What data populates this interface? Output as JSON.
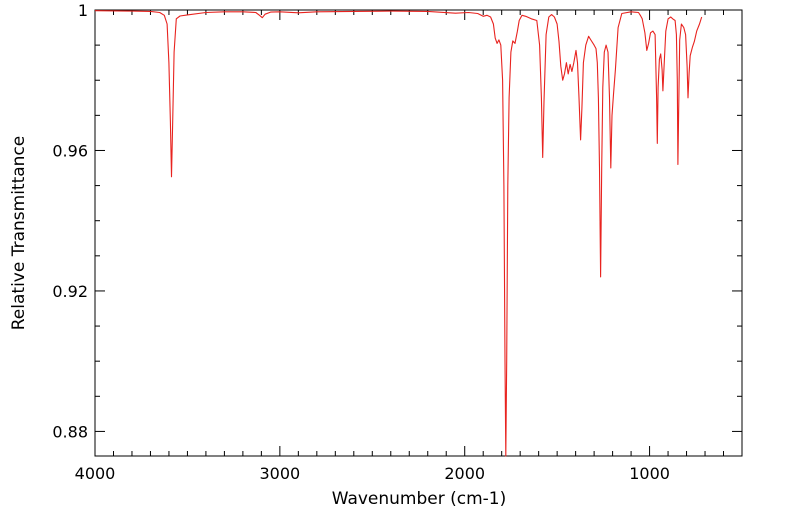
{
  "chart_data": {
    "type": "line",
    "xlabel": "Wavenumber (cm-1)",
    "ylabel": "Relative Transmittance",
    "xlim": [
      4000,
      500
    ],
    "ylim": [
      0.873,
      1.0
    ],
    "x_reversed": true,
    "x_ticks": [
      4000,
      3000,
      2000,
      1000
    ],
    "x_tick_labels": [
      "4000",
      "3000",
      "2000",
      "1000"
    ],
    "y_ticks": [
      1.0,
      0.96,
      0.92,
      0.88
    ],
    "y_tick_labels": [
      "1",
      "0.96",
      "0.92",
      "0.88"
    ],
    "grid": false,
    "series": [
      {
        "color": "#e8231f",
        "points": [
          [
            4000,
            0.9998
          ],
          [
            3800,
            0.9997
          ],
          [
            3700,
            0.9996
          ],
          [
            3650,
            0.9993
          ],
          [
            3625,
            0.9985
          ],
          [
            3610,
            0.996
          ],
          [
            3600,
            0.985
          ],
          [
            3592,
            0.968
          ],
          [
            3586,
            0.9525
          ],
          [
            3580,
            0.967
          ],
          [
            3572,
            0.988
          ],
          [
            3560,
            0.9975
          ],
          [
            3540,
            0.9983
          ],
          [
            3500,
            0.9986
          ],
          [
            3400,
            0.9993
          ],
          [
            3300,
            0.9995
          ],
          [
            3200,
            0.9995
          ],
          [
            3130,
            0.9993
          ],
          [
            3110,
            0.9985
          ],
          [
            3095,
            0.9978
          ],
          [
            3080,
            0.9988
          ],
          [
            3050,
            0.9994
          ],
          [
            3000,
            0.9995
          ],
          [
            2900,
            0.9992
          ],
          [
            2800,
            0.9995
          ],
          [
            2600,
            0.9996
          ],
          [
            2400,
            0.9997
          ],
          [
            2200,
            0.9996
          ],
          [
            2050,
            0.9991
          ],
          [
            1980,
            0.9993
          ],
          [
            1930,
            0.999
          ],
          [
            1900,
            0.9982
          ],
          [
            1880,
            0.9985
          ],
          [
            1860,
            0.998
          ],
          [
            1845,
            0.996
          ],
          [
            1835,
            0.992
          ],
          [
            1825,
            0.9905
          ],
          [
            1815,
            0.9915
          ],
          [
            1805,
            0.99
          ],
          [
            1795,
            0.98
          ],
          [
            1788,
            0.95
          ],
          [
            1782,
            0.9
          ],
          [
            1778,
            0.873
          ],
          [
            1773,
            0.9
          ],
          [
            1767,
            0.95
          ],
          [
            1760,
            0.975
          ],
          [
            1750,
            0.988
          ],
          [
            1740,
            0.9912
          ],
          [
            1728,
            0.9905
          ],
          [
            1715,
            0.994
          ],
          [
            1705,
            0.997
          ],
          [
            1690,
            0.9985
          ],
          [
            1670,
            0.9982
          ],
          [
            1640,
            0.9975
          ],
          [
            1610,
            0.997
          ],
          [
            1595,
            0.99
          ],
          [
            1585,
            0.975
          ],
          [
            1578,
            0.958
          ],
          [
            1571,
            0.974
          ],
          [
            1560,
            0.993
          ],
          [
            1545,
            0.998
          ],
          [
            1530,
            0.9987
          ],
          [
            1515,
            0.998
          ],
          [
            1500,
            0.996
          ],
          [
            1490,
            0.991
          ],
          [
            1480,
            0.984
          ],
          [
            1470,
            0.98
          ],
          [
            1460,
            0.9818
          ],
          [
            1450,
            0.985
          ],
          [
            1440,
            0.9818
          ],
          [
            1430,
            0.9845
          ],
          [
            1420,
            0.9825
          ],
          [
            1410,
            0.985
          ],
          [
            1398,
            0.9885
          ],
          [
            1390,
            0.985
          ],
          [
            1382,
            0.975
          ],
          [
            1373,
            0.963
          ],
          [
            1366,
            0.972
          ],
          [
            1358,
            0.985
          ],
          [
            1345,
            0.99
          ],
          [
            1330,
            0.9925
          ],
          [
            1318,
            0.9915
          ],
          [
            1300,
            0.99
          ],
          [
            1290,
            0.989
          ],
          [
            1283,
            0.985
          ],
          [
            1277,
            0.975
          ],
          [
            1271,
            0.955
          ],
          [
            1265,
            0.924
          ],
          [
            1259,
            0.955
          ],
          [
            1253,
            0.978
          ],
          [
            1245,
            0.988
          ],
          [
            1235,
            0.99
          ],
          [
            1225,
            0.988
          ],
          [
            1217,
            0.975
          ],
          [
            1210,
            0.955
          ],
          [
            1203,
            0.97
          ],
          [
            1195,
            0.976
          ],
          [
            1185,
            0.983
          ],
          [
            1170,
            0.995
          ],
          [
            1150,
            0.999
          ],
          [
            1100,
            0.9995
          ],
          [
            1060,
            0.9993
          ],
          [
            1050,
            0.9985
          ],
          [
            1040,
            0.9975
          ],
          [
            1025,
            0.9935
          ],
          [
            1015,
            0.9885
          ],
          [
            1005,
            0.9905
          ],
          [
            995,
            0.9935
          ],
          [
            982,
            0.994
          ],
          [
            970,
            0.993
          ],
          [
            962,
            0.975
          ],
          [
            958,
            0.962
          ],
          [
            954,
            0.978
          ],
          [
            947,
            0.986
          ],
          [
            940,
            0.9875
          ],
          [
            932,
            0.983
          ],
          [
            928,
            0.977
          ],
          [
            922,
            0.9835
          ],
          [
            912,
            0.994
          ],
          [
            900,
            0.9975
          ],
          [
            885,
            0.998
          ],
          [
            875,
            0.9975
          ],
          [
            862,
            0.997
          ],
          [
            855,
            0.993
          ],
          [
            850,
            0.98
          ],
          [
            847,
            0.956
          ],
          [
            843,
            0.97
          ],
          [
            837,
            0.9915
          ],
          [
            828,
            0.996
          ],
          [
            815,
            0.995
          ],
          [
            805,
            0.993
          ],
          [
            797,
            0.984
          ],
          [
            792,
            0.975
          ],
          [
            786,
            0.982
          ],
          [
            780,
            0.987
          ],
          [
            768,
            0.9895
          ],
          [
            758,
            0.991
          ],
          [
            745,
            0.994
          ],
          [
            730,
            0.996
          ],
          [
            718,
            0.998
          ]
        ]
      }
    ]
  }
}
